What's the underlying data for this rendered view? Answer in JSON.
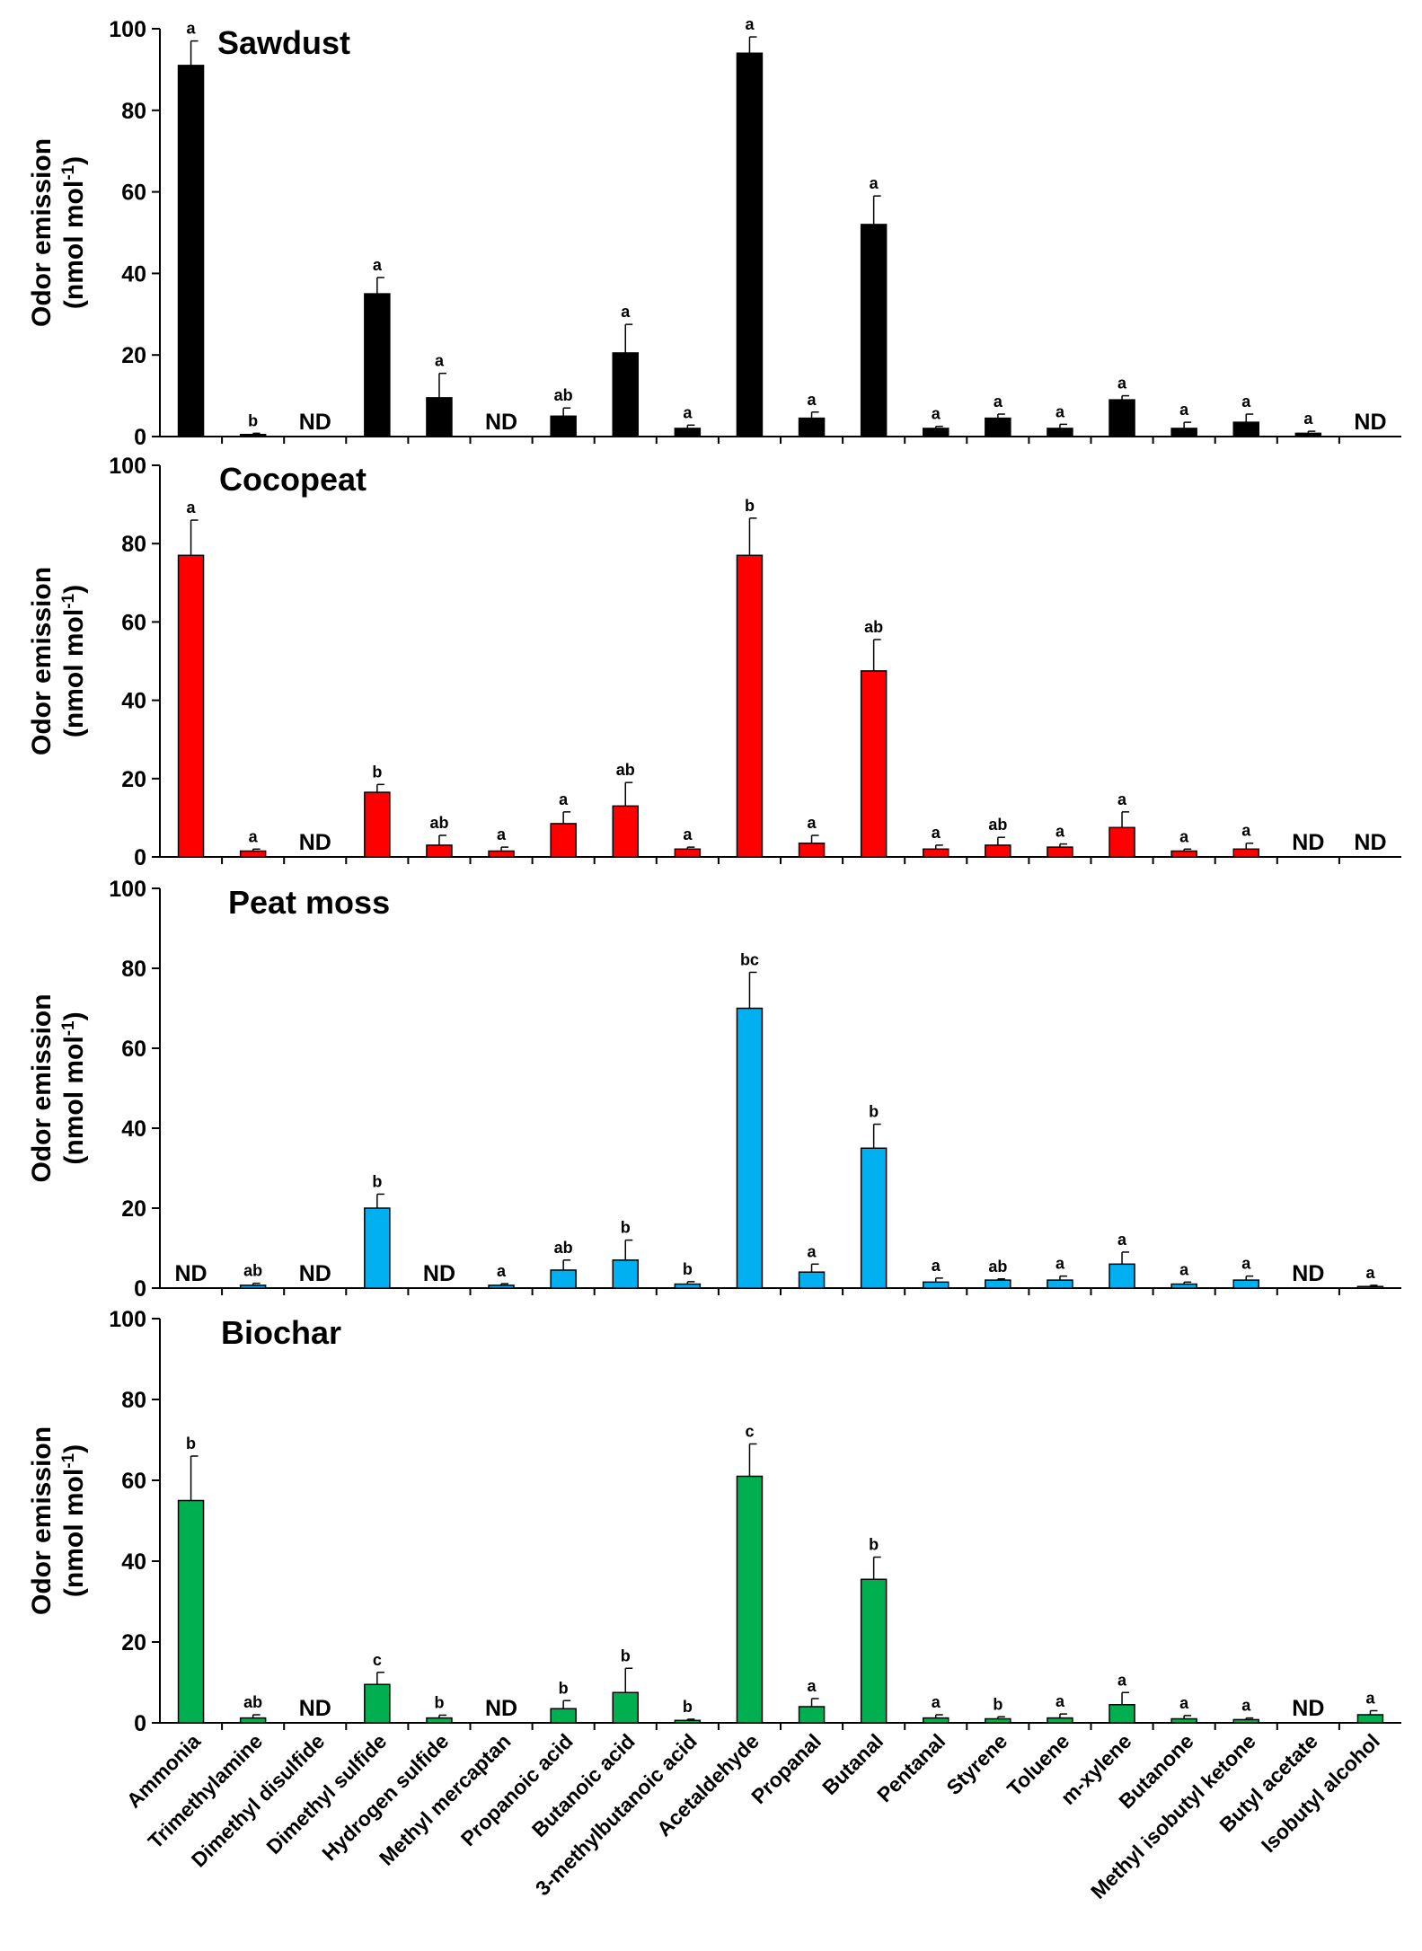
{
  "chart_data": {
    "type": "bar",
    "ylabel_line1": "Odor emission",
    "ylabel_line2_prefix": "(nmol mol",
    "ylabel_line2_sup": "-1",
    "ylabel_line2_suffix": ")",
    "ylim": [
      0,
      100
    ],
    "yticks": [
      "0",
      "20",
      "40",
      "60",
      "80",
      "100"
    ],
    "nd_label": "ND",
    "categories": [
      "Ammonia",
      "Trimethylamine",
      "Dimethyl disulfide",
      "Dimethyl sulfide",
      "Hydrogen sulfide",
      "Methyl mercaptan",
      "Propanoic acid",
      "Butanoic acid",
      "3-methylbutanoic acid",
      "Acetaldehyde",
      "Propanal",
      "Butanal",
      "Pentanal",
      "Styrene",
      "Toluene",
      "m-xylene",
      "Butanone",
      "Methyl isobutyl ketone",
      "Butyl acetate",
      "Isobutyl alcohol"
    ],
    "panels": [
      {
        "name": "Sawdust",
        "color": "#000000",
        "values": [
          91,
          0.5,
          null,
          35,
          9.5,
          null,
          5,
          20.5,
          2,
          94,
          4.5,
          52,
          2,
          4.5,
          2,
          9,
          2,
          3.5,
          0.8,
          null
        ],
        "errors": [
          6,
          0.3,
          null,
          4,
          6,
          null,
          2,
          7,
          0.8,
          4,
          1.5,
          7,
          0.5,
          1,
          1,
          1,
          1.5,
          2,
          0.5,
          null
        ],
        "letters": [
          "a",
          "b",
          "ND",
          "a",
          "a",
          "ND",
          "ab",
          "a",
          "a",
          "a",
          "a",
          "a",
          "a",
          "a",
          "a",
          "a",
          "a",
          "a",
          "a",
          "ND"
        ]
      },
      {
        "name": "Cocopeat",
        "color": "#ff0000",
        "values": [
          77,
          1.5,
          null,
          16.5,
          3,
          1.5,
          8.5,
          13,
          2,
          77,
          3.5,
          47.5,
          2,
          3,
          2.5,
          7.5,
          1.5,
          2,
          null,
          null
        ],
        "errors": [
          9,
          0.5,
          null,
          2,
          2.5,
          1,
          3,
          6,
          0.5,
          9.5,
          2,
          8,
          1,
          2,
          0.8,
          4,
          0.5,
          1.5,
          null,
          null
        ],
        "letters": [
          "a",
          "a",
          "ND",
          "b",
          "ab",
          "a",
          "a",
          "ab",
          "a",
          "b",
          "a",
          "ab",
          "a",
          "ab",
          "a",
          "a",
          "a",
          "a",
          "ND",
          "ND"
        ]
      },
      {
        "name": "Peat moss",
        "color": "#00b0f0",
        "values": [
          null,
          0.7,
          null,
          20,
          null,
          0.7,
          4.5,
          7,
          1,
          70,
          4,
          35,
          1.5,
          2,
          2,
          6,
          1,
          2,
          null,
          0.4
        ],
        "errors": [
          null,
          0.5,
          null,
          3.5,
          null,
          0.4,
          2.5,
          5,
          0.6,
          9,
          2,
          6,
          1,
          0.3,
          1,
          3,
          0.5,
          1,
          null,
          0.3
        ],
        "letters": [
          "ND",
          "ab",
          "ND",
          "b",
          "ND",
          "a",
          "ab",
          "b",
          "b",
          "bc",
          "a",
          "b",
          "a",
          "ab",
          "a",
          "a",
          "a",
          "a",
          "ND",
          "a"
        ]
      },
      {
        "name": "Biochar",
        "color": "#00b050",
        "values": [
          55,
          1.2,
          null,
          9.5,
          1.2,
          null,
          3.5,
          7.5,
          0.6,
          61,
          4,
          35.5,
          1.2,
          1,
          1.2,
          4.5,
          1,
          0.8,
          null,
          2
        ],
        "errors": [
          11,
          0.8,
          null,
          3,
          0.7,
          null,
          2,
          6,
          0.3,
          8,
          2,
          5.5,
          0.8,
          0.5,
          1,
          3,
          0.8,
          0.4,
          null,
          1
        ],
        "letters": [
          "b",
          "ab",
          "ND",
          "c",
          "b",
          "ND",
          "b",
          "b",
          "b",
          "c",
          "a",
          "b",
          "a",
          "b",
          "a",
          "a",
          "a",
          "a",
          "ND",
          "a"
        ]
      }
    ]
  }
}
